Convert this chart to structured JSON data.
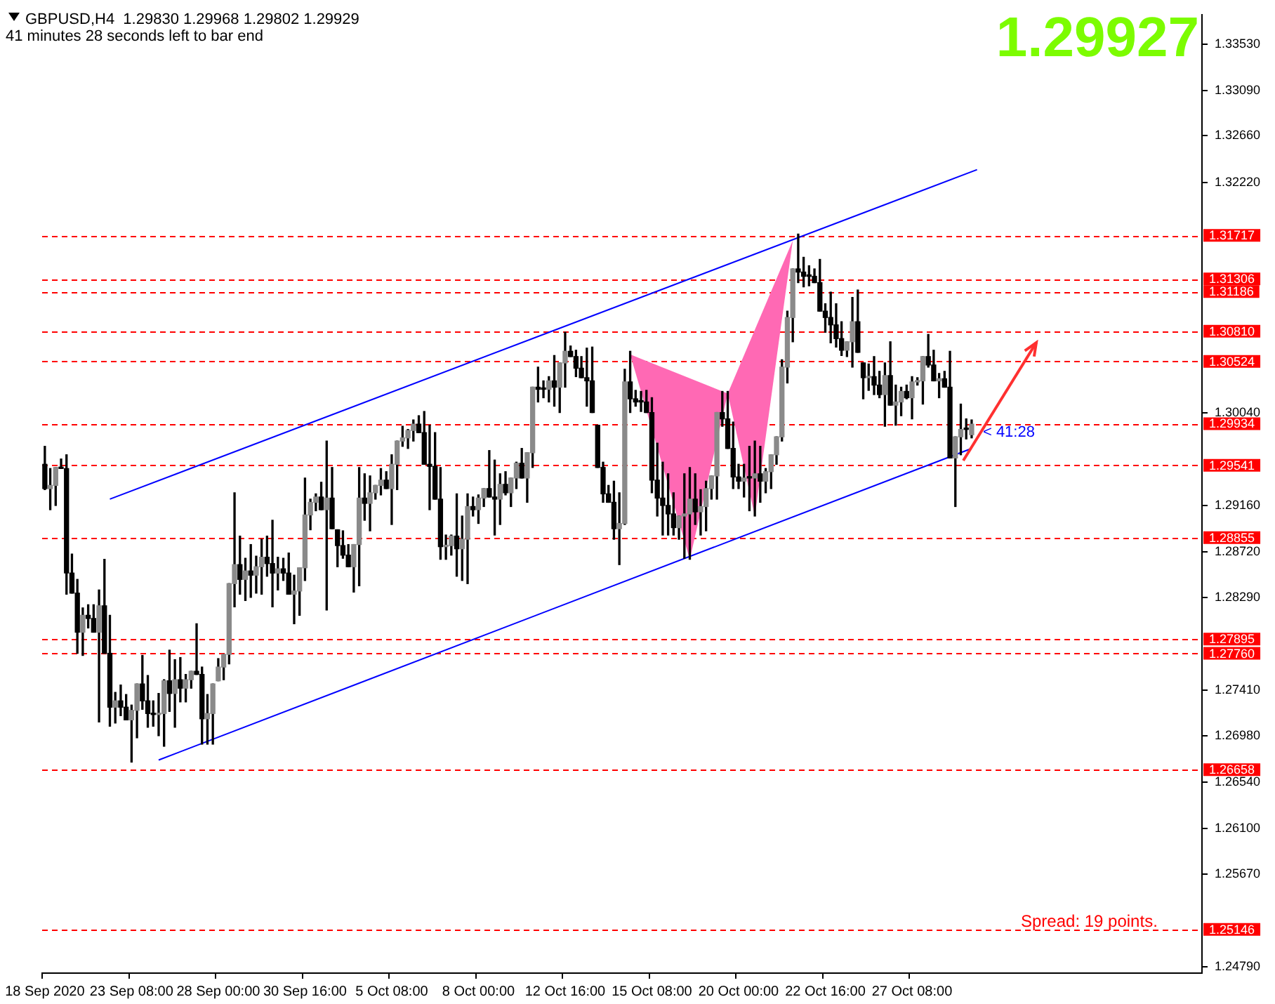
{
  "chart_data": {
    "type": "candlestick",
    "categories": [
      "18 Sep 2020",
      null,
      null,
      null,
      null,
      null,
      null,
      null,
      null,
      null,
      null,
      null,
      null,
      null,
      null,
      null,
      "23 Sep 08:00",
      null,
      null,
      null,
      null,
      null,
      null,
      null,
      null,
      null,
      null,
      null,
      null,
      null,
      null,
      null,
      "28 Sep 00:00",
      null,
      null,
      null,
      null,
      null,
      null,
      null,
      null,
      null,
      null,
      null,
      null,
      null,
      null,
      null,
      "30 Sep 16:00",
      null,
      null,
      null,
      null,
      null,
      null,
      null,
      null,
      null,
      null,
      null,
      null,
      null,
      null,
      null,
      "5 Oct 08:00",
      null,
      null,
      null,
      null,
      null,
      null,
      null,
      null,
      null,
      null,
      null,
      null,
      null,
      null,
      null,
      "8 Oct 00:00",
      null,
      null,
      null,
      null,
      null,
      null,
      null,
      null,
      null,
      null,
      null,
      null,
      null,
      null,
      null,
      "12 Oct 16:00",
      null,
      null,
      null,
      null,
      null,
      null,
      null,
      null,
      null,
      null,
      null,
      null,
      null,
      null,
      null,
      "15 Oct 08:00",
      null,
      null,
      null,
      null,
      null,
      null,
      null,
      null,
      null,
      null,
      null,
      null,
      null,
      null,
      null,
      "20 Oct 00:00",
      null,
      null,
      null,
      null,
      null,
      null,
      null,
      null,
      null,
      null,
      null,
      null,
      null,
      null,
      null,
      "22 Oct 16:00",
      null,
      null,
      null,
      null,
      null,
      null,
      null,
      null,
      null,
      null,
      null,
      null,
      null,
      null,
      null,
      "27 Oct 08:00",
      null,
      null,
      null,
      null,
      null,
      null,
      null,
      null,
      null,
      null,
      null,
      null,
      null,
      null,
      null,
      null,
      null,
      null,
      null,
      null,
      null,
      null,
      null,
      null,
      null,
      null,
      null,
      null,
      null,
      null,
      null,
      null,
      null,
      null,
      null,
      null,
      null,
      null,
      null,
      null,
      null,
      null,
      null,
      null,
      null,
      null,
      null,
      null,
      null,
      null,
      null,
      null,
      null
    ],
    "ohlc": [
      [
        1.2955,
        1.2972,
        1.2931,
        1.2932
      ],
      [
        1.2932,
        1.2951,
        1.2912,
        1.2935
      ],
      [
        1.2935,
        1.2952,
        1.2916,
        1.2952
      ],
      [
        1.2952,
        1.296,
        1.2951,
        1.2951
      ],
      [
        1.2951,
        1.2964,
        1.2832,
        1.2852
      ],
      [
        1.2852,
        1.287,
        1.2833,
        1.2833
      ],
      [
        1.2833,
        1.2846,
        1.2776,
        1.2796
      ],
      [
        1.2796,
        1.2819,
        1.2774,
        1.2812
      ],
      [
        1.2812,
        1.2822,
        1.28,
        1.2809
      ],
      [
        1.2809,
        1.2822,
        1.2796,
        1.2796
      ],
      [
        1.2796,
        1.2836,
        1.2711,
        1.2821
      ],
      [
        1.2821,
        1.2865,
        1.2776,
        1.2776
      ],
      [
        1.2776,
        1.2812,
        1.2707,
        1.2725
      ],
      [
        1.2725,
        1.2739,
        1.271,
        1.2731
      ],
      [
        1.2731,
        1.2746,
        1.2717,
        1.2725
      ],
      [
        1.2725,
        1.2737,
        1.2713,
        1.2713
      ],
      [
        1.2713,
        1.2727,
        1.2673,
        1.2722
      ],
      [
        1.2722,
        1.2747,
        1.2696,
        1.2747
      ],
      [
        1.2747,
        1.2774,
        1.2723,
        1.2731
      ],
      [
        1.2731,
        1.2755,
        1.2706,
        1.2719
      ],
      [
        1.2719,
        1.2731,
        1.2707,
        1.2718
      ],
      [
        1.2718,
        1.2738,
        1.2698,
        1.2719
      ],
      [
        1.2719,
        1.2751,
        1.2688,
        1.275
      ],
      [
        1.275,
        1.2779,
        1.2721,
        1.2738
      ],
      [
        1.2738,
        1.277,
        1.2706,
        1.2751
      ],
      [
        1.2751,
        1.2772,
        1.273,
        1.2743
      ],
      [
        1.2743,
        1.2756,
        1.273,
        1.2751
      ],
      [
        1.2751,
        1.2759,
        1.2743,
        1.2759
      ],
      [
        1.2759,
        1.2804,
        1.2756,
        1.2756
      ],
      [
        1.2756,
        1.2763,
        1.269,
        1.2714
      ],
      [
        1.2714,
        1.2737,
        1.269,
        1.2719
      ],
      [
        1.2719,
        1.2747,
        1.269,
        1.2747
      ],
      [
        1.275,
        1.2771,
        1.275,
        1.2763
      ],
      [
        1.2763,
        1.2775,
        1.2751,
        1.2775
      ],
      [
        1.2775,
        1.2842,
        1.2766,
        1.2842
      ],
      [
        1.2842,
        1.2928,
        1.282,
        1.286
      ],
      [
        1.286,
        1.2887,
        1.2832,
        1.2846
      ],
      [
        1.2846,
        1.2866,
        1.2826,
        1.2854
      ],
      [
        1.2854,
        1.2879,
        1.2829,
        1.285
      ],
      [
        1.285,
        1.2868,
        1.2833,
        1.2858
      ],
      [
        1.2858,
        1.2884,
        1.2832,
        1.2867
      ],
      [
        1.2867,
        1.2887,
        1.2849,
        1.2861
      ],
      [
        1.2861,
        1.2902,
        1.282,
        1.2852
      ],
      [
        1.2852,
        1.2867,
        1.2836,
        1.2856
      ],
      [
        1.2856,
        1.2866,
        1.2845,
        1.2852
      ],
      [
        1.2852,
        1.2871,
        1.2832,
        1.2832
      ],
      [
        1.2832,
        1.285,
        1.2804,
        1.2835
      ],
      [
        1.2835,
        1.2857,
        1.2812,
        1.2857
      ],
      [
        1.2857,
        1.2942,
        1.2845,
        1.2907
      ],
      [
        1.2907,
        1.2922,
        1.2893,
        1.2919
      ],
      [
        1.2919,
        1.2927,
        1.2911,
        1.2924
      ],
      [
        1.2924,
        1.2938,
        1.2912,
        1.2912
      ],
      [
        1.2912,
        1.2977,
        1.2817,
        1.2923
      ],
      [
        1.2923,
        1.2952,
        1.2894,
        1.2894
      ],
      [
        1.2893,
        1.2893,
        1.2858,
        1.2878
      ],
      [
        1.2878,
        1.2892,
        1.2866,
        1.2869
      ],
      [
        1.2869,
        1.2879,
        1.2858,
        1.2858
      ],
      [
        1.2858,
        1.2879,
        1.2834,
        1.2879
      ],
      [
        1.2879,
        1.2952,
        1.284,
        1.2923
      ],
      [
        1.2923,
        1.2946,
        1.2902,
        1.2918
      ],
      [
        1.2918,
        1.2944,
        1.2892,
        1.2928
      ],
      [
        1.2928,
        1.2935,
        1.2922,
        1.2935
      ],
      [
        1.2935,
        1.2951,
        1.2926,
        1.294
      ],
      [
        1.294,
        1.2948,
        1.2932,
        1.2932
      ],
      [
        1.2932,
        1.2964,
        1.2898,
        1.2955
      ],
      [
        1.2955,
        1.2977,
        1.2931,
        1.2977
      ],
      [
        1.2977,
        1.2991,
        1.2972,
        1.298
      ],
      [
        1.298,
        1.2988,
        1.297,
        1.2987
      ],
      [
        1.2987,
        1.2997,
        1.2977,
        1.2993
      ],
      [
        1.2993,
        1.3001,
        1.2985,
        1.2985
      ],
      [
        1.2985,
        1.3005,
        1.2955,
        1.2955
      ],
      [
        1.2955,
        1.2992,
        1.2912,
        1.2953
      ],
      [
        1.2953,
        1.2985,
        1.2922,
        1.2922
      ],
      [
        1.2922,
        1.2952,
        1.2865,
        1.2877
      ],
      [
        1.2877,
        1.2888,
        1.2865,
        1.2878
      ],
      [
        1.2878,
        1.2888,
        1.2869,
        1.2887
      ],
      [
        1.2887,
        1.2927,
        1.2849,
        1.2875
      ],
      [
        1.2875,
        1.2906,
        1.2845,
        1.2884
      ],
      [
        1.2884,
        1.2927,
        1.2842,
        1.2915
      ],
      [
        1.2915,
        1.2924,
        1.2906,
        1.2912
      ],
      [
        1.2912,
        1.2926,
        1.2899,
        1.2923
      ],
      [
        1.2923,
        1.2932,
        1.2915,
        1.2932
      ],
      [
        1.2932,
        1.2968,
        1.2924,
        1.2924
      ],
      [
        1.2924,
        1.2959,
        1.2888,
        1.2922
      ],
      [
        1.2922,
        1.2946,
        1.2898,
        1.2936
      ],
      [
        1.2936,
        1.2948,
        1.2926,
        1.2928
      ],
      [
        1.2928,
        1.2942,
        1.2915,
        1.2942
      ],
      [
        1.2942,
        1.2957,
        1.2932,
        1.2956
      ],
      [
        1.2956,
        1.297,
        1.2942,
        1.2942
      ],
      [
        1.2942,
        1.2966,
        1.2919,
        1.2966
      ],
      [
        1.2966,
        1.3028,
        1.2952,
        1.3028
      ],
      [
        1.3028,
        1.3047,
        1.3014,
        1.3026
      ],
      [
        1.3026,
        1.3034,
        1.3018,
        1.3026
      ],
      [
        1.3026,
        1.3038,
        1.3014,
        1.3034
      ],
      [
        1.3034,
        1.3058,
        1.301,
        1.3028
      ],
      [
        1.3028,
        1.3051,
        1.3004,
        1.3051
      ],
      [
        1.3051,
        1.308,
        1.3028,
        1.3062
      ],
      [
        1.3062,
        1.3067,
        1.3057,
        1.3057
      ],
      [
        1.3057,
        1.3063,
        1.3038,
        1.3046
      ],
      [
        1.3046,
        1.3057,
        1.3037,
        1.3037
      ],
      [
        1.3037,
        1.3065,
        1.301,
        1.3034
      ],
      [
        1.3034,
        1.3066,
        1.3004,
        1.3004
      ],
      [
        1.2992,
        1.2992,
        1.2952,
        1.2952
      ],
      [
        1.2952,
        1.2957,
        1.2919,
        1.2927
      ],
      [
        1.2927,
        1.2935,
        1.2919,
        1.2919
      ],
      [
        1.2919,
        1.2939,
        1.2884,
        1.2894
      ],
      [
        1.2894,
        1.2928,
        1.286,
        1.2899
      ],
      [
        1.2899,
        1.3045,
        1.2898,
        1.3033
      ],
      [
        1.3033,
        1.3062,
        1.3004,
        1.3017
      ],
      [
        1.3017,
        1.3025,
        1.301,
        1.3014
      ],
      [
        1.3014,
        1.3024,
        1.3005,
        1.3014
      ],
      [
        1.3014,
        1.3025,
        1.3004,
        1.3004
      ],
      [
        1.3004,
        1.3018,
        1.2928,
        1.294
      ],
      [
        1.294,
        1.2975,
        1.2906,
        1.2923
      ],
      [
        1.2923,
        1.2957,
        1.2888,
        1.2916
      ],
      [
        1.2916,
        1.2946,
        1.2888,
        1.2908
      ],
      [
        1.2908,
        1.2928,
        1.2888,
        1.2895
      ],
      [
        1.2895,
        1.2906,
        1.2884,
        1.2906
      ],
      [
        1.2906,
        1.2946,
        1.2866,
        1.2908
      ],
      [
        1.2908,
        1.2952,
        1.2865,
        1.2922
      ],
      [
        1.2922,
        1.2946,
        1.2898,
        1.291
      ],
      [
        1.291,
        1.2931,
        1.2888,
        1.2915
      ],
      [
        1.2915,
        1.2939,
        1.2892,
        1.2932
      ],
      [
        1.2932,
        1.2944,
        1.2922,
        1.2944
      ],
      [
        1.2944,
        1.3004,
        1.2922,
        1.3004
      ],
      [
        1.3004,
        1.3024,
        1.2991,
        1.2998
      ],
      [
        1.2998,
        1.3024,
        1.297,
        1.297
      ],
      [
        1.297,
        1.2995,
        1.2932,
        1.2943
      ],
      [
        1.2943,
        1.2955,
        1.2932,
        1.2939
      ],
      [
        1.2939,
        1.2955,
        1.2924,
        1.2942
      ],
      [
        1.2942,
        1.2972,
        1.2911,
        1.2942
      ],
      [
        1.2942,
        1.2977,
        1.2906,
        1.2946
      ],
      [
        1.2946,
        1.2972,
        1.2919,
        1.2939
      ],
      [
        1.2939,
        1.2951,
        1.2928,
        1.2948
      ],
      [
        1.2948,
        1.2964,
        1.2932,
        1.2964
      ],
      [
        1.2964,
        1.2981,
        1.2955,
        1.2981
      ],
      [
        1.2981,
        1.3054,
        1.2977,
        1.3047
      ],
      [
        1.3047,
        1.31,
        1.3032,
        1.3094
      ],
      [
        1.3094,
        1.314,
        1.3071,
        1.314
      ],
      [
        1.314,
        1.3173,
        1.3127,
        1.3137
      ],
      [
        1.3137,
        1.3151,
        1.3123,
        1.3133
      ],
      [
        1.3133,
        1.3143,
        1.3124,
        1.3133
      ],
      [
        1.3133,
        1.314,
        1.3127,
        1.3127
      ],
      [
        1.3127,
        1.3149,
        1.31,
        1.31
      ],
      [
        1.31,
        1.3107,
        1.308,
        1.3094
      ],
      [
        1.3094,
        1.3118,
        1.307,
        1.3087
      ],
      [
        1.3087,
        1.3107,
        1.3066,
        1.3074
      ],
      [
        1.3074,
        1.309,
        1.3058,
        1.3063
      ],
      [
        1.3063,
        1.3071,
        1.3057,
        1.3071
      ],
      [
        1.3071,
        1.3113,
        1.3047,
        1.309
      ],
      [
        1.309,
        1.312,
        1.3061,
        1.3061
      ],
      [
        1.3051,
        1.3051,
        1.3017,
        1.3037
      ],
      [
        1.3037,
        1.305,
        1.3025,
        1.3038
      ],
      [
        1.3038,
        1.3057,
        1.3021,
        1.303
      ],
      [
        1.303,
        1.3043,
        1.3018,
        1.3021
      ],
      [
        1.3021,
        1.3051,
        1.2991,
        1.3039
      ],
      [
        1.3039,
        1.3071,
        1.3011,
        1.3011
      ],
      [
        1.3011,
        1.303,
        1.2992,
        1.3014
      ],
      [
        1.3014,
        1.3028,
        1.3001,
        1.3024
      ],
      [
        1.3024,
        1.303,
        1.3017,
        1.3018
      ],
      [
        1.3018,
        1.3038,
        1.2998,
        1.3033
      ],
      [
        1.3033,
        1.3037,
        1.303,
        1.3034
      ],
      [
        1.3034,
        1.3057,
        1.3012,
        1.3057
      ],
      [
        1.3057,
        1.3078,
        1.3047,
        1.3049
      ],
      [
        1.3049,
        1.3063,
        1.3034,
        1.3034
      ],
      [
        1.3034,
        1.3041,
        1.3018,
        1.3036
      ],
      [
        1.3036,
        1.3043,
        1.3028,
        1.3028
      ],
      [
        1.3028,
        1.3062,
        1.2961,
        1.2961
      ],
      [
        1.2961,
        1.2981,
        1.2915,
        1.2981
      ],
      [
        1.2981,
        1.3012,
        1.2964,
        1.2988
      ],
      [
        1.2988,
        1.2998,
        1.2979,
        1.2988
      ],
      [
        1.2983,
        1.2997,
        1.298,
        1.2993
      ],
      null,
      null,
      null,
      null,
      null,
      null,
      null,
      null,
      null,
      null,
      null,
      null,
      null,
      null,
      null,
      null,
      null,
      null,
      null,
      null,
      null,
      null,
      null,
      null,
      null,
      null,
      null,
      null,
      null,
      null,
      null,
      null,
      null,
      null,
      null,
      null,
      null,
      null,
      null,
      null,
      null,
      null
    ],
    "ylim": [
      1.24732,
      1.33808
    ],
    "yticks": [
      {
        "value": 1.3353,
        "label": "1.33530"
      },
      {
        "value": 1.3309,
        "label": "1.33090"
      },
      {
        "value": 1.3266,
        "label": "1.32660"
      },
      {
        "value": 1.3222,
        "label": "1.32220"
      },
      {
        "value": 1.3004,
        "label": "1.30040"
      },
      {
        "value": 1.2916,
        "label": "1.29160"
      },
      {
        "value": 1.2872,
        "label": "1.28720"
      },
      {
        "value": 1.2829,
        "label": "1.28290"
      },
      {
        "value": 1.2741,
        "label": "1.27410"
      },
      {
        "value": 1.2698,
        "label": "1.26980"
      },
      {
        "value": 1.2654,
        "label": "1.26540"
      },
      {
        "value": 1.261,
        "label": "1.26100"
      },
      {
        "value": 1.2567,
        "label": "1.25670"
      },
      {
        "value": 1.2479,
        "label": "1.24790"
      }
    ],
    "ref_lines": [
      {
        "axis": "y",
        "value": 1.31717,
        "label": "1.31717",
        "color": "#ff0000",
        "line_style": "dashed"
      },
      {
        "axis": "y",
        "value": 1.31306,
        "label": "1.31306",
        "color": "#ff0000",
        "line_style": "dashed"
      },
      {
        "axis": "y",
        "value": 1.31186,
        "label": "1.31186",
        "color": "#ff0000",
        "line_style": "dashed"
      },
      {
        "axis": "y",
        "value": 1.3081,
        "label": "1.30810",
        "color": "#ff0000",
        "line_style": "dashed"
      },
      {
        "axis": "y",
        "value": 1.30524,
        "label": "1.30524",
        "color": "#ff0000",
        "line_style": "dashed"
      },
      {
        "axis": "y",
        "value": 1.29934,
        "label": "1.29934",
        "color": "#ff0000",
        "line_style": "dashed"
      },
      {
        "axis": "y",
        "value": 1.29541,
        "label": "1.29541",
        "color": "#ff0000",
        "line_style": "dashed"
      },
      {
        "axis": "y",
        "value": 1.28855,
        "label": "1.28855",
        "color": "#ff0000",
        "line_style": "dashed"
      },
      {
        "axis": "y",
        "value": 1.27895,
        "label": "1.27895",
        "color": "#ff0000",
        "line_style": "dashed"
      },
      {
        "axis": "y",
        "value": 1.2776,
        "label": "1.27760",
        "color": "#ff0000",
        "line_style": "dashed"
      },
      {
        "axis": "y",
        "value": 1.26658,
        "label": "1.26658",
        "color": "#ff0000",
        "line_style": "dashed"
      },
      {
        "axis": "y",
        "value": 1.25146,
        "label": "1.25146",
        "color": "#ff0000",
        "line_style": "dashed"
      }
    ],
    "series": [
      {
        "type": "line",
        "color": "#0000ff",
        "values": [
          null,
          null,
          null,
          null,
          null,
          null,
          null,
          null,
          null,
          null,
          null,
          null,
          1.2922,
          null,
          null,
          null,
          null,
          null,
          null,
          null,
          null,
          null,
          null,
          null,
          null,
          null,
          null,
          null,
          null,
          null,
          null,
          null,
          null,
          null,
          null,
          null,
          null,
          null,
          null,
          null,
          null,
          null,
          null,
          null,
          null,
          null,
          null,
          null,
          null,
          null,
          null,
          null,
          null,
          null,
          null,
          null,
          null,
          null,
          null,
          null,
          null,
          null,
          null,
          null,
          null,
          null,
          null,
          null,
          null,
          null,
          null,
          null,
          null,
          null,
          null,
          null,
          null,
          null,
          null,
          null,
          null,
          null,
          null,
          null,
          null,
          null,
          null,
          null,
          null,
          null,
          null,
          null,
          null,
          null,
          null,
          null,
          null,
          null,
          null,
          null,
          null,
          null,
          null,
          null,
          null,
          null,
          null,
          null,
          null,
          null,
          null,
          null,
          null,
          null,
          null,
          null,
          null,
          null,
          null,
          null,
          null,
          null,
          null,
          null,
          null,
          null,
          null,
          null,
          null,
          null,
          null,
          null,
          null,
          null,
          null,
          null,
          null,
          null,
          null,
          null,
          null,
          null,
          null,
          null,
          null,
          null,
          null,
          null,
          null,
          null,
          null,
          null,
          null,
          null,
          null,
          null,
          null,
          null,
          null,
          null,
          null,
          null,
          null,
          null,
          null,
          null,
          null,
          null,
          null,
          null,
          null,
          null,
          1.3234,
          null,
          null,
          null,
          null,
          null,
          null,
          null,
          null,
          null,
          null,
          null,
          null,
          null,
          null,
          null,
          null,
          null,
          null,
          null,
          null,
          null,
          null,
          null,
          null,
          null,
          null,
          null,
          null,
          null,
          null,
          null,
          null,
          null,
          null,
          null,
          null,
          null,
          null,
          null,
          null,
          null
        ]
      },
      {
        "type": "line",
        "color": "#0000ff",
        "values": [
          null,
          null,
          null,
          null,
          null,
          null,
          null,
          null,
          null,
          null,
          null,
          null,
          null,
          null,
          null,
          null,
          null,
          null,
          null,
          null,
          null,
          1.2675,
          null,
          null,
          null,
          null,
          null,
          null,
          null,
          null,
          null,
          null,
          null,
          null,
          null,
          null,
          null,
          null,
          null,
          null,
          null,
          null,
          null,
          null,
          null,
          null,
          null,
          null,
          null,
          null,
          null,
          null,
          null,
          null,
          null,
          null,
          null,
          null,
          null,
          null,
          null,
          null,
          null,
          null,
          null,
          null,
          null,
          null,
          null,
          null,
          null,
          null,
          null,
          null,
          null,
          null,
          null,
          null,
          null,
          null,
          null,
          null,
          null,
          null,
          null,
          null,
          null,
          null,
          null,
          null,
          null,
          null,
          null,
          null,
          null,
          null,
          null,
          null,
          null,
          null,
          null,
          null,
          null,
          null,
          null,
          null,
          null,
          null,
          null,
          null,
          null,
          null,
          null,
          null,
          null,
          null,
          null,
          null,
          null,
          null,
          null,
          null,
          null,
          null,
          null,
          null,
          null,
          null,
          null,
          null,
          null,
          null,
          null,
          null,
          null,
          null,
          null,
          null,
          null,
          null,
          null,
          null,
          null,
          null,
          null,
          null,
          null,
          null,
          null,
          null,
          null,
          null,
          null,
          null,
          null,
          null,
          null,
          null,
          null,
          null,
          null,
          null,
          null,
          null,
          null,
          null,
          null,
          null,
          null,
          null,
          null,
          1.297,
          null,
          null,
          null,
          null,
          null,
          null,
          null,
          null,
          null,
          null,
          null,
          null,
          null,
          null,
          null,
          null,
          null,
          null,
          null,
          null,
          null,
          null,
          null,
          null,
          null,
          null,
          null,
          null,
          null,
          null,
          null,
          null,
          null,
          null,
          null,
          null,
          null,
          null,
          null,
          null,
          null,
          null
        ]
      },
      {
        "type": "area",
        "color": "#ff69b4",
        "values": [
          null,
          null,
          null,
          null,
          null,
          null,
          null,
          null,
          null,
          null,
          null,
          null,
          null,
          null,
          null,
          null,
          null,
          null,
          null,
          null,
          null,
          null,
          null,
          null,
          null,
          null,
          null,
          null,
          null,
          null,
          null,
          null,
          null,
          null,
          null,
          null,
          null,
          null,
          null,
          null,
          null,
          null,
          null,
          null,
          null,
          null,
          null,
          null,
          null,
          null,
          null,
          null,
          null,
          null,
          null,
          null,
          null,
          null,
          null,
          null,
          null,
          null,
          null,
          null,
          null,
          null,
          null,
          null,
          null,
          null,
          null,
          null,
          null,
          null,
          null,
          null,
          null,
          null,
          null,
          null,
          null,
          null,
          null,
          null,
          null,
          null,
          null,
          null,
          null,
          null,
          null,
          null,
          null,
          null,
          null,
          null,
          null,
          null,
          null,
          null,
          null,
          null,
          null,
          null,
          null,
          null,
          null,
          null,
          1.3059,
          null,
          null,
          null,
          null,
          null,
          null,
          null,
          null,
          null,
          null,
          1.2865,
          null,
          null,
          null,
          null,
          null,
          null,
          1.3022,
          null,
          null,
          null,
          null,
          null,
          null,
          null,
          null,
          null,
          null,
          null,
          null,
          null,
          null,
          null,
          null,
          null,
          null,
          null,
          null,
          null,
          null,
          null,
          null,
          null,
          null,
          null,
          null,
          null,
          null,
          null,
          null,
          null,
          null,
          null,
          null,
          null,
          null,
          null,
          null,
          null,
          null,
          null,
          null,
          null,
          null,
          null,
          null,
          null,
          null,
          null,
          null,
          null,
          null,
          null,
          null,
          null,
          null,
          null,
          null,
          null,
          null,
          null,
          null,
          null,
          null,
          null,
          null,
          null,
          null,
          null,
          null,
          null,
          null,
          null,
          null,
          null,
          null,
          null,
          null,
          null,
          null,
          null,
          null,
          null,
          null,
          null
        ]
      },
      {
        "type": "area",
        "color": "#ff69b4",
        "values": [
          null,
          null,
          null,
          null,
          null,
          null,
          null,
          null,
          null,
          null,
          null,
          null,
          null,
          null,
          null,
          null,
          null,
          null,
          null,
          null,
          null,
          null,
          null,
          null,
          null,
          null,
          null,
          null,
          null,
          null,
          null,
          null,
          null,
          null,
          null,
          null,
          null,
          null,
          null,
          null,
          null,
          null,
          null,
          null,
          null,
          null,
          null,
          null,
          null,
          null,
          null,
          null,
          null,
          null,
          null,
          null,
          null,
          null,
          null,
          null,
          null,
          null,
          null,
          null,
          null,
          null,
          null,
          null,
          null,
          null,
          null,
          null,
          null,
          null,
          null,
          null,
          null,
          null,
          null,
          null,
          null,
          null,
          null,
          null,
          null,
          null,
          null,
          null,
          null,
          null,
          null,
          null,
          null,
          null,
          null,
          null,
          null,
          null,
          null,
          null,
          null,
          null,
          null,
          null,
          null,
          null,
          null,
          null,
          null,
          null,
          null,
          null,
          null,
          null,
          null,
          null,
          null,
          null,
          null,
          null,
          null,
          null,
          null,
          null,
          null,
          null,
          1.3022,
          null,
          null,
          null,
          null,
          1.2906,
          null,
          null,
          null,
          null,
          null,
          null,
          1.3167,
          null,
          null,
          null,
          null,
          null,
          null,
          null,
          null,
          null,
          null,
          null,
          null,
          null,
          null,
          null,
          null,
          null,
          null,
          null,
          null,
          null,
          null,
          null,
          null,
          null,
          null,
          null,
          null,
          null,
          null,
          null,
          null,
          null,
          null,
          null,
          null,
          null,
          null,
          null,
          null,
          null,
          null,
          null,
          null,
          null,
          null,
          null,
          null,
          null,
          null,
          null,
          null,
          null,
          null,
          null,
          null,
          null,
          null,
          null,
          null,
          null,
          null,
          null,
          null,
          null,
          null,
          null,
          null,
          null,
          null,
          null,
          null,
          null,
          null,
          null
        ]
      }
    ],
    "annotations": [
      "GBPUSD,H4  1.29830 1.29968 1.29802 1.29929",
      "41 minutes 28 seconds left to bar end",
      "1.29927",
      "Spread: 19 points.",
      "< 41:28"
    ]
  }
}
